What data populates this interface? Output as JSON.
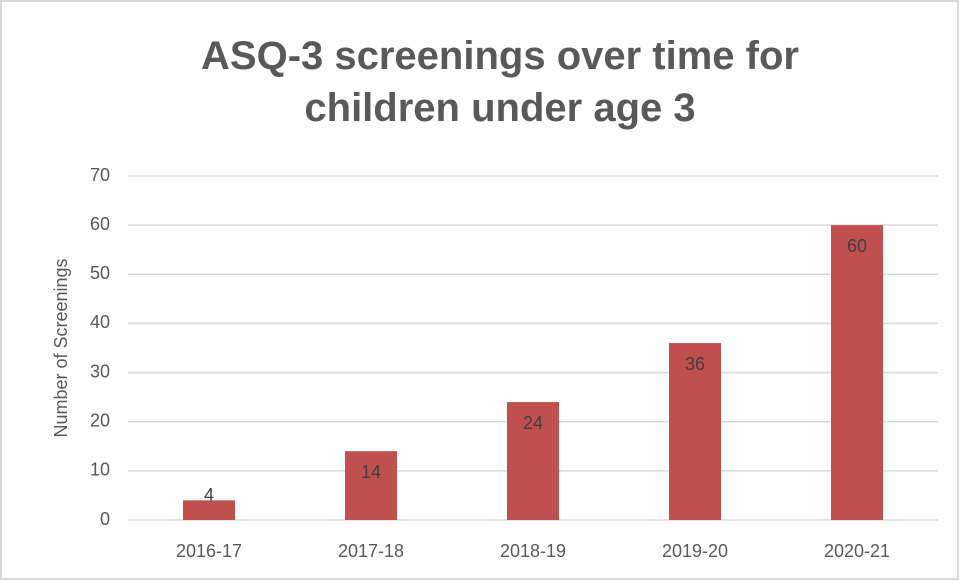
{
  "chart_data": {
    "type": "bar",
    "title": "ASQ-3 screenings over time for children under age 3",
    "y_label": "Number of Screenings",
    "categories": [
      "2016-17",
      "2017-18",
      "2018-19",
      "2019-20",
      "2020-21"
    ],
    "values": [
      4,
      14,
      24,
      36,
      60
    ],
    "color": "#c0504d",
    "ylim": [
      0,
      70
    ],
    "yticks": [
      0,
      10,
      20,
      30,
      40,
      50,
      60,
      70
    ],
    "grid": true,
    "data_labels": true
  }
}
